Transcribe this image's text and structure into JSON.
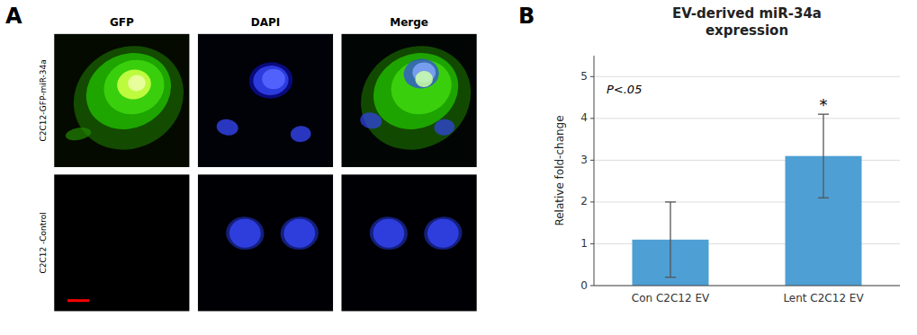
{
  "chart_data": [
    {
      "type": "image",
      "title": "A",
      "columns": [
        "GFP",
        "DAPI",
        "Merge"
      ],
      "rows": [
        "C2C12-GFP-miR-34a",
        "C2C12 -Control"
      ]
    },
    {
      "type": "bar",
      "title": "B",
      "subtitle": "EV-derived miR-34a\nexpression",
      "categories": [
        "Con C2C12 EV",
        "Lent C2C12 EV"
      ],
      "values": [
        1.1,
        3.1
      ],
      "errors": [
        0.9,
        1.0
      ],
      "color": "#4e9fd4",
      "y_label": "Relative fold-change",
      "ylim": [
        0,
        5.5
      ],
      "yticks": [
        0,
        1,
        2,
        3,
        4,
        5
      ],
      "grid": true,
      "annotations": [
        "P<.05",
        "*"
      ]
    }
  ]
}
